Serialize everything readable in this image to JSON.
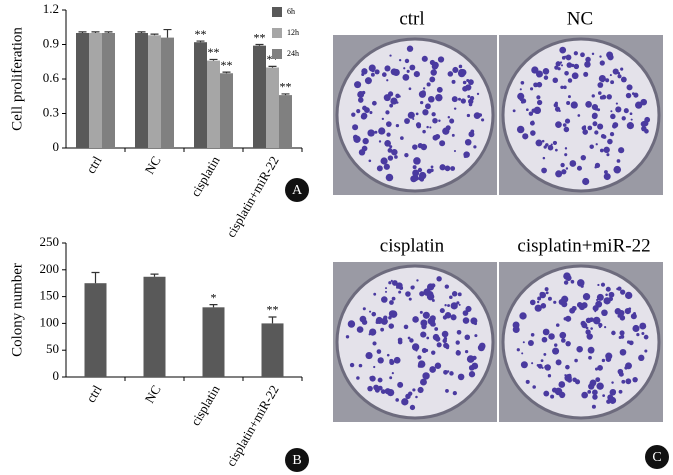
{
  "chart_data": [
    {
      "type": "bar",
      "y_label": "Cell proliferation",
      "categories": [
        "ctrl",
        "NC",
        "cisplatin",
        "cisplatin+miR-22"
      ],
      "series": [
        {
          "name": "6h",
          "color": "#595959",
          "values": [
            1.0,
            1.0,
            0.92,
            0.89
          ],
          "errors": [
            0.01,
            0.01,
            0.01,
            0.01
          ],
          "significance": [
            null,
            null,
            "**",
            "**"
          ]
        },
        {
          "name": "12h",
          "color": "#a6a6a6",
          "values": [
            1.0,
            0.98,
            0.76,
            0.7
          ],
          "errors": [
            0.01,
            0.01,
            0.01,
            0.01
          ],
          "significance": [
            null,
            null,
            "**",
            "**"
          ]
        },
        {
          "name": "24h",
          "color": "#808080",
          "values": [
            1.0,
            0.96,
            0.65,
            0.46
          ],
          "errors": [
            0.01,
            0.07,
            0.01,
            0.01
          ],
          "significance": [
            null,
            null,
            "**",
            "**"
          ]
        }
      ],
      "ylim": [
        0,
        1.2
      ],
      "yticks": [
        0,
        0.3,
        0.6,
        0.9,
        1.2
      ]
    },
    {
      "type": "bar",
      "y_label": "Colony number",
      "categories": [
        "ctrl",
        "NC",
        "cisplatin",
        "cisplatin+miR-22"
      ],
      "color": "#595959",
      "values": [
        175,
        187,
        130,
        100
      ],
      "errors": [
        20,
        5,
        5,
        12
      ],
      "significance": [
        null,
        null,
        "*",
        "**"
      ],
      "ylim": [
        0,
        250
      ],
      "yticks": [
        0,
        50,
        100,
        150,
        200,
        250
      ]
    }
  ],
  "photos": [
    "ctrl",
    "NC",
    "cisplatin",
    "cisplatin+miR-22"
  ],
  "panel_labels": [
    "A",
    "B",
    "C"
  ]
}
